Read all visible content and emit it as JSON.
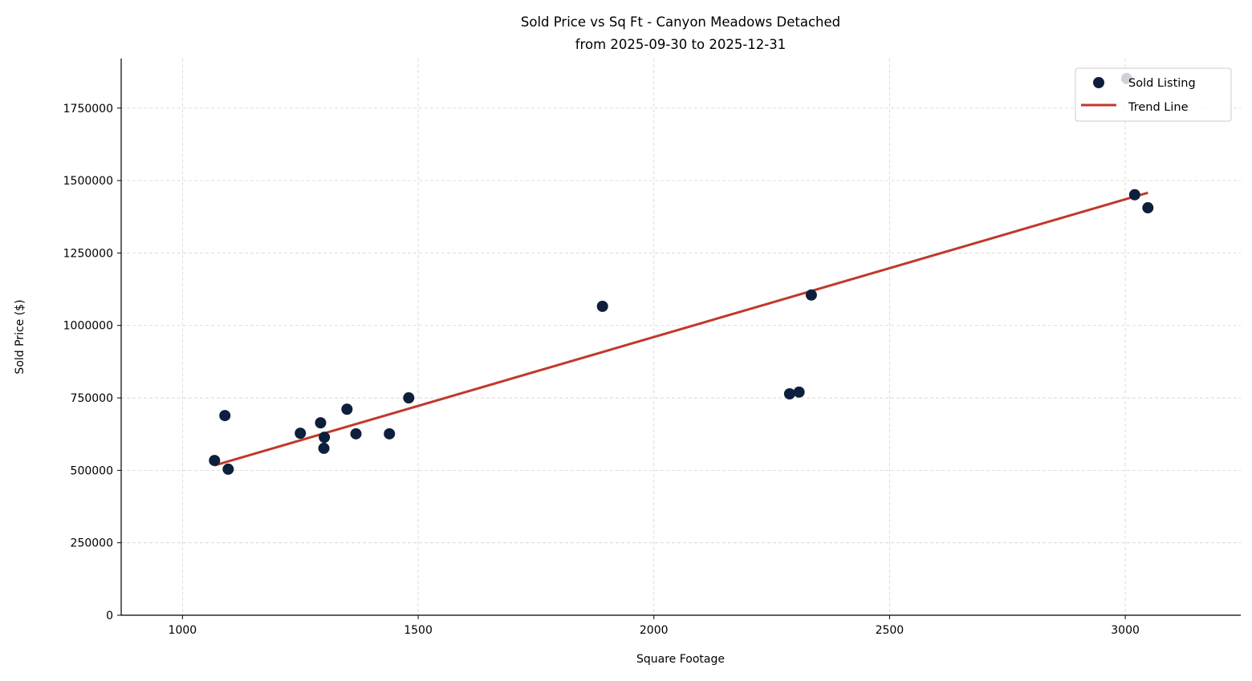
{
  "chart_data": {
    "type": "scatter",
    "title": "Sold Price vs Sq Ft - Canyon Meadows Detached",
    "subtitle": "from 2025-09-30 to 2025-12-31",
    "xlabel": "Square Footage",
    "ylabel": "Sold Price ($)",
    "xlim": [
      870,
      3245
    ],
    "ylim": [
      0,
      1921000
    ],
    "xticks": [
      1000,
      1500,
      2000,
      2500,
      3000
    ],
    "yticks": [
      0,
      250000,
      500000,
      750000,
      1000000,
      1250000,
      1500000,
      1750000
    ],
    "grid": true,
    "legend_position": "top-right",
    "series": [
      {
        "name": "Sold Listing",
        "type": "scatter",
        "color": "#0d1f3c",
        "x": [
          1068,
          1090,
          1097,
          1250,
          1293,
          1301,
          1300,
          1349,
          1368,
          1439,
          1480,
          1891,
          2288,
          2308,
          2334,
          3003,
          3020,
          3048
        ],
        "y": [
          534000,
          689000,
          504000,
          628000,
          664000,
          614000,
          576000,
          711000,
          626000,
          626000,
          750000,
          1066000,
          764000,
          770000,
          1105000,
          1852000,
          1451000,
          1406000
        ]
      },
      {
        "name": "Trend Line",
        "type": "line",
        "color": "#c0392b",
        "x": [
          1068,
          3048
        ],
        "y": [
          517000,
          1458000
        ]
      }
    ]
  }
}
